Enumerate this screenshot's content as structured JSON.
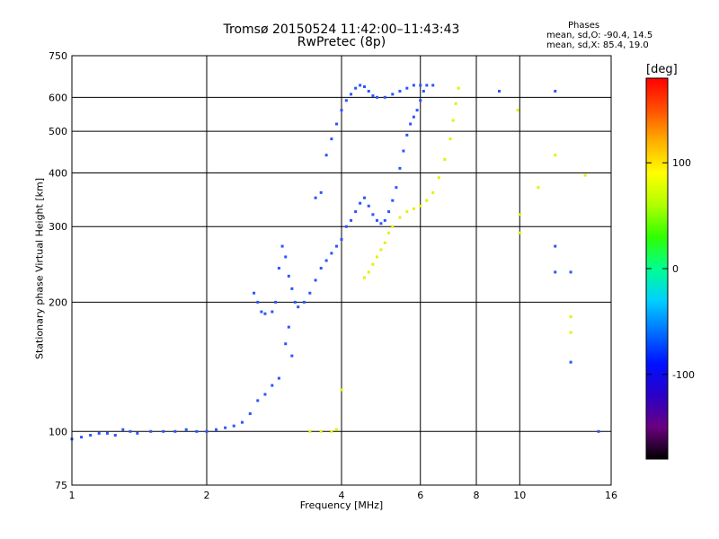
{
  "header": {
    "title": "Tromsø 20150524 11:42:00–11:43:43",
    "subtitle": "RwPretec (8p)",
    "phases_title": "Phases",
    "phases_o": "mean, sd,O: -90.4, 14.5",
    "phases_x": "mean, sd,X:  85.4, 19.0"
  },
  "colorbar": {
    "unit": "[deg]",
    "ticks": [
      {
        "label": "100",
        "value": 100
      },
      {
        "label": "0",
        "value": 0
      },
      {
        "label": "-100",
        "value": -100
      }
    ],
    "range": [
      -180,
      180
    ],
    "colors": [
      "#000000",
      "#6a0080",
      "#2a00c8",
      "#0010ff",
      "#0070ff",
      "#00d0ff",
      "#00ff90",
      "#30ff00",
      "#b0ff00",
      "#ffff00",
      "#ffb000",
      "#ff5000",
      "#ff0000"
    ]
  },
  "chart_data": {
    "type": "scatter",
    "title": "Tromsø 20150524 11:42:00–11:43:43",
    "subtitle": "RwPretec (8p)",
    "xlabel": "Frequency [MHz]",
    "ylabel": "Stationary phase Virtual Height [km]",
    "x_scale": "log",
    "y_scale": "log",
    "xlim": [
      1,
      16
    ],
    "ylim": [
      75,
      750
    ],
    "x_ticks": [
      {
        "label": "1",
        "value": 1
      },
      {
        "label": "2",
        "value": 2
      },
      {
        "label": "4",
        "value": 4
      },
      {
        "label": "6",
        "value": 6
      },
      {
        "label": "8",
        "value": 8
      },
      {
        "label": "10",
        "value": 10
      },
      {
        "label": "16",
        "value": 16
      }
    ],
    "y_ticks": [
      {
        "label": "75",
        "value": 75
      },
      {
        "label": "100",
        "value": 100
      },
      {
        "label": "200",
        "value": 200
      },
      {
        "label": "300",
        "value": 300
      },
      {
        "label": "400",
        "value": 400
      },
      {
        "label": "500",
        "value": 500
      },
      {
        "label": "600",
        "value": 600
      },
      {
        "label": "750",
        "value": 750
      }
    ],
    "grid": true,
    "color_scale": "phase [deg]",
    "series": [
      {
        "mode": "O",
        "color": "#2a55ff",
        "points": [
          [
            1.0,
            96
          ],
          [
            1.05,
            97
          ],
          [
            1.1,
            98
          ],
          [
            1.15,
            99
          ],
          [
            1.2,
            99
          ],
          [
            1.25,
            98
          ],
          [
            1.3,
            101
          ],
          [
            1.35,
            100
          ],
          [
            1.4,
            99
          ],
          [
            1.5,
            100
          ],
          [
            1.6,
            100
          ],
          [
            1.7,
            100
          ],
          [
            1.8,
            101
          ],
          [
            1.9,
            100
          ],
          [
            2.0,
            100
          ],
          [
            2.1,
            101
          ],
          [
            2.2,
            102
          ],
          [
            2.3,
            103
          ],
          [
            2.4,
            105
          ],
          [
            2.5,
            110
          ],
          [
            2.6,
            118
          ],
          [
            2.7,
            122
          ],
          [
            2.8,
            128
          ],
          [
            2.9,
            133
          ],
          [
            3.0,
            160
          ],
          [
            3.05,
            175
          ],
          [
            3.1,
            150
          ],
          [
            2.55,
            210
          ],
          [
            2.6,
            200
          ],
          [
            2.65,
            190
          ],
          [
            2.7,
            188
          ],
          [
            2.8,
            190
          ],
          [
            2.85,
            200
          ],
          [
            2.9,
            240
          ],
          [
            2.95,
            270
          ],
          [
            3.0,
            255
          ],
          [
            3.05,
            230
          ],
          [
            3.1,
            215
          ],
          [
            3.15,
            200
          ],
          [
            3.2,
            195
          ],
          [
            3.3,
            200
          ],
          [
            3.4,
            210
          ],
          [
            3.5,
            225
          ],
          [
            3.6,
            240
          ],
          [
            3.7,
            250
          ],
          [
            3.8,
            260
          ],
          [
            3.9,
            270
          ],
          [
            4.0,
            280
          ],
          [
            3.5,
            350
          ],
          [
            3.6,
            360
          ],
          [
            3.7,
            440
          ],
          [
            3.8,
            480
          ],
          [
            3.9,
            520
          ],
          [
            4.0,
            560
          ],
          [
            4.1,
            590
          ],
          [
            4.2,
            610
          ],
          [
            4.3,
            630
          ],
          [
            4.4,
            640
          ],
          [
            4.5,
            635
          ],
          [
            4.6,
            620
          ],
          [
            4.7,
            605
          ],
          [
            4.8,
            600
          ],
          [
            5.0,
            600
          ],
          [
            5.2,
            610
          ],
          [
            5.4,
            620
          ],
          [
            5.6,
            630
          ],
          [
            5.8,
            640
          ],
          [
            6.0,
            640
          ],
          [
            6.2,
            640
          ],
          [
            6.4,
            640
          ],
          [
            4.1,
            300
          ],
          [
            4.2,
            310
          ],
          [
            4.3,
            325
          ],
          [
            4.4,
            340
          ],
          [
            4.5,
            350
          ],
          [
            4.6,
            335
          ],
          [
            4.7,
            320
          ],
          [
            4.8,
            310
          ],
          [
            4.9,
            305
          ],
          [
            5.0,
            310
          ],
          [
            5.1,
            325
          ],
          [
            5.2,
            345
          ],
          [
            5.3,
            370
          ],
          [
            5.4,
            410
          ],
          [
            5.5,
            450
          ],
          [
            5.6,
            490
          ],
          [
            5.7,
            520
          ],
          [
            5.8,
            540
          ],
          [
            5.9,
            560
          ],
          [
            6.0,
            590
          ],
          [
            6.1,
            620
          ],
          [
            9.0,
            620
          ],
          [
            12.0,
            620
          ],
          [
            12.0,
            270
          ],
          [
            12.0,
            235
          ],
          [
            13.0,
            235
          ],
          [
            13.0,
            145
          ],
          [
            15.0,
            100
          ]
        ]
      },
      {
        "mode": "X",
        "color": "#e6f000",
        "points": [
          [
            3.4,
            100
          ],
          [
            3.6,
            100
          ],
          [
            3.8,
            100
          ],
          [
            3.9,
            101
          ],
          [
            4.0,
            125
          ],
          [
            4.5,
            228
          ],
          [
            4.6,
            235
          ],
          [
            4.7,
            245
          ],
          [
            4.8,
            255
          ],
          [
            4.9,
            265
          ],
          [
            5.0,
            275
          ],
          [
            5.1,
            290
          ],
          [
            5.2,
            300
          ],
          [
            5.4,
            315
          ],
          [
            5.6,
            325
          ],
          [
            5.8,
            330
          ],
          [
            6.0,
            335
          ],
          [
            6.2,
            345
          ],
          [
            6.4,
            360
          ],
          [
            6.6,
            390
          ],
          [
            6.8,
            430
          ],
          [
            7.0,
            480
          ],
          [
            7.1,
            530
          ],
          [
            7.2,
            580
          ],
          [
            7.3,
            630
          ],
          [
            9.9,
            560
          ],
          [
            10.0,
            320
          ],
          [
            10.0,
            290
          ],
          [
            11.0,
            370
          ],
          [
            12.0,
            440
          ],
          [
            13.0,
            185
          ],
          [
            13.0,
            170
          ],
          [
            14.0,
            395
          ]
        ]
      }
    ]
  }
}
